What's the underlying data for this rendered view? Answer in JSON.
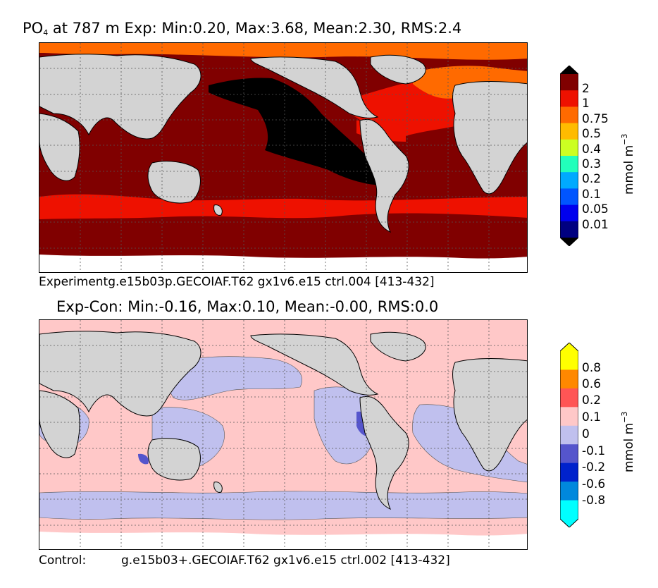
{
  "top_panel": {
    "title_var": "PO",
    "title_sub": "4",
    "title_rest": " at 787 m Exp: Min:0.20, Max:3.68, Mean:2.30, RMS:2.4",
    "caption": "Experimentg.e15b03p.GECOIAF.T62 gx1v6.e15 ctrl.004   [413-432]",
    "colorbar": {
      "unit_base": "mmol m",
      "unit_exp": "−3",
      "ticks": [
        "2",
        "1",
        "0.75",
        "0.5",
        "0.4",
        "0.3",
        "0.2",
        "0.1",
        "0.05",
        "0.01"
      ],
      "colors": [
        "#800000",
        "#ee1100",
        "#ff6a00",
        "#ffbb00",
        "#ccff22",
        "#22ffbb",
        "#00aaff",
        "#0055ff",
        "#0000ee",
        "#000080"
      ],
      "over_color": "#000000",
      "under_color": "#000000"
    }
  },
  "bottom_panel": {
    "title": "Exp-Con: Min:-0.16, Max:0.10, Mean:-0.00, RMS:0.0",
    "caption_left": "Control:",
    "caption_right": "g.e15b03+.GECOIAF.T62 gx1v6.e15 ctrl.002  [413-432]",
    "colorbar": {
      "unit_base": "mmol m",
      "unit_exp": "−3",
      "ticks": [
        "0.8",
        "0.6",
        "0.2",
        "0.1",
        "0",
        "-0.1",
        "-0.2",
        "-0.6",
        "-0.8"
      ],
      "colors": [
        "#ffff00",
        "#ff8800",
        "#ff5555",
        "#ffc8c8",
        "#c0c0ee",
        "#5555cc",
        "#0022cc",
        "#0088dd",
        "#00ffff"
      ],
      "over_color": "#ffff00",
      "under_color": "#00ffff"
    }
  },
  "colors": {
    "land": "#d3d3d3",
    "grid": "#555555"
  }
}
